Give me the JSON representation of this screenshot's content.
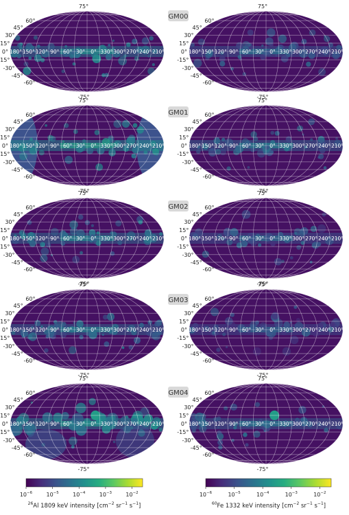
{
  "rows": [
    {
      "label": "GM00"
    },
    {
      "label": "GM01"
    },
    {
      "label": "GM02"
    },
    {
      "label": "GM03"
    },
    {
      "label": "GM04"
    }
  ],
  "map_labels": {
    "lat_ticks_left": [
      "60°",
      "45°",
      "30°",
      "15°",
      "0°",
      "-15°",
      "-30°",
      "-45°",
      "-60°"
    ],
    "lat_top": "75°",
    "lat_bottom": "-75°",
    "lon_ticks": [
      "180°",
      "150°",
      "120°",
      "90°",
      "60°",
      "30°",
      "0°",
      "330°",
      "300°",
      "270°",
      "240°",
      "210°"
    ]
  },
  "colorbars": {
    "left_label_sup": "26",
    "left_label": "Al 1809 keV intensity [cm",
    "right_label_sup": "60",
    "right_label": "Fe 1332 keV intensity [cm",
    "unit_tail": "sr",
    "unit_end": "]",
    "ticks": [
      "10",
      "10",
      "10",
      "10",
      "10"
    ],
    "tick_exponents": [
      "-6",
      "-5",
      "-4",
      "-3",
      "-2"
    ],
    "colormap": "viridis",
    "range_log10": [
      -6,
      -1.6
    ]
  },
  "chart_data": {
    "type": "heatmap",
    "projection": "mollweide",
    "panels_layout": "5 rows x 2 columns",
    "columns": [
      "26Al 1809 keV",
      "60Fe 1332 keV"
    ],
    "models": [
      "GM00",
      "GM01",
      "GM02",
      "GM03",
      "GM04"
    ],
    "colorscale": {
      "name": "viridis",
      "log10_min": -6,
      "log10_max": -1.6
    },
    "background_level_log10": -5.8,
    "galactic_plane_level_log10": {
      "GM00": {
        "Al": -4.3,
        "Fe": -4.8
      },
      "GM01": {
        "Al": -4.0,
        "Fe": -4.6
      },
      "GM02": {
        "Al": -4.5,
        "Fe": -4.9
      },
      "GM03": {
        "Al": -4.6,
        "Fe": -5.0
      },
      "GM04": {
        "Al": -4.2,
        "Fe": -4.7
      }
    }
  }
}
